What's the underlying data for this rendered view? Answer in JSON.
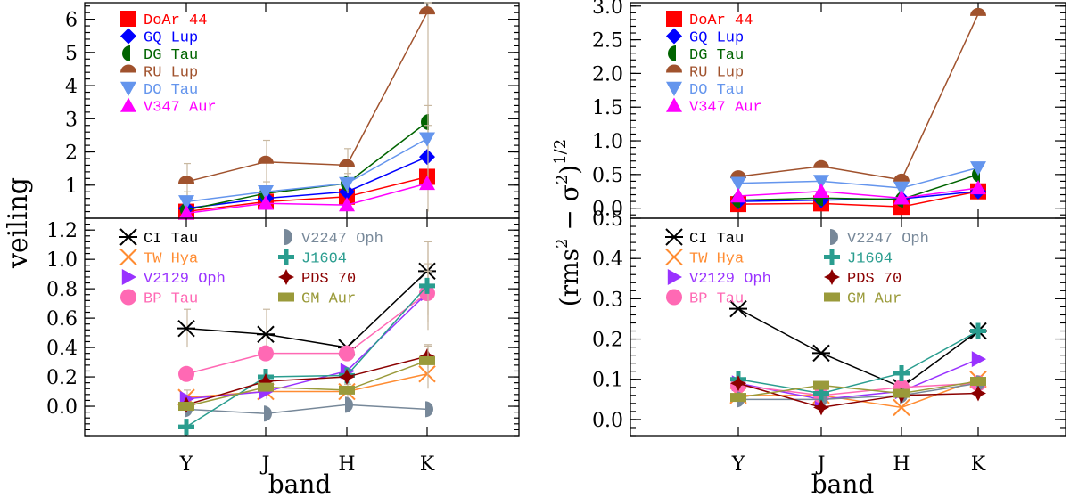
{
  "labels": {
    "left_ylabel": "veiling",
    "right_ylabel_base": "(rms",
    "right_ylabel_sup1": "2",
    "right_ylabel_mid": " − σ",
    "right_ylabel_sup2": "2",
    "right_ylabel_end": ")",
    "right_ylabel_exp": "1/2",
    "xlabel": "band"
  },
  "chart_data": [
    {
      "id": "left_top",
      "type": "line",
      "xlabel": "band",
      "ylabel": "veiling",
      "categories": [
        "Y",
        "J",
        "H",
        "K"
      ],
      "ylim": [
        0,
        6.5
      ],
      "yticks": [
        "1",
        "2",
        "3",
        "4",
        "5",
        "6"
      ],
      "ytick_values": [
        1,
        2,
        3,
        4,
        5,
        6
      ],
      "legend_placement": "top-left",
      "series": [
        {
          "name": "DoAr 44",
          "color": "#ff0000",
          "marker": "square",
          "values": [
            0.2,
            0.5,
            0.65,
            1.25
          ],
          "errors": [
            0.15,
            0.15,
            0.15,
            0.2
          ]
        },
        {
          "name": "GQ Lup",
          "color": "#0000ff",
          "marker": "diamond",
          "values": [
            0.3,
            0.6,
            0.8,
            1.85
          ],
          "errors": [
            0,
            0,
            0,
            0
          ]
        },
        {
          "name": "DG Tau",
          "color": "#006400",
          "marker": "halfcircle-left",
          "values": [
            0.25,
            0.75,
            1.05,
            2.9
          ],
          "errors": [
            0,
            0,
            0,
            0.5
          ]
        },
        {
          "name": "RU Lup",
          "color": "#a0522d",
          "marker": "halfcircle-top",
          "values": [
            1.1,
            1.7,
            1.6,
            6.2
          ],
          "errors": [
            0.55,
            0.65,
            0.5,
            6.0
          ]
        },
        {
          "name": "DO Tau",
          "color": "#6495ed",
          "marker": "triangle-down",
          "values": [
            0.5,
            0.8,
            1.05,
            2.4
          ],
          "errors": [
            0.3,
            0.3,
            0.3,
            0.4
          ]
        },
        {
          "name": "V347 Aur",
          "color": "#ff00ff",
          "marker": "triangle-up",
          "values": [
            0.15,
            0.45,
            0.4,
            1.05
          ],
          "errors": [
            0,
            0,
            0,
            0
          ]
        }
      ]
    },
    {
      "id": "left_bottom",
      "type": "line",
      "xlabel": "band",
      "ylabel": "veiling",
      "categories": [
        "Y",
        "J",
        "H",
        "K"
      ],
      "ylim": [
        -0.2,
        1.28
      ],
      "yticks": [
        "0.0",
        "0.2",
        "0.4",
        "0.6",
        "0.8",
        "1.0",
        "1.2"
      ],
      "ytick_values": [
        0,
        0.2,
        0.4,
        0.6,
        0.8,
        1.0,
        1.2
      ],
      "legend_placement": "top-left",
      "series": [
        {
          "name": "CI Tau",
          "color": "#000000",
          "marker": "asterisk",
          "values": [
            0.53,
            0.49,
            0.4,
            0.92
          ],
          "errors": [
            0.13,
            0.17,
            0,
            0.2
          ]
        },
        {
          "name": "TW Hya",
          "color": "#ff8c32",
          "marker": "x",
          "values": [
            0.06,
            0.1,
            0.1,
            0.22
          ],
          "errors": [
            0.05,
            0.05,
            0.05,
            0.1
          ]
        },
        {
          "name": "V2129 Oph",
          "color": "#9932ff",
          "marker": "triangle-right",
          "values": [
            0.05,
            0.1,
            0.24,
            0.77
          ],
          "errors": [
            0,
            0,
            0,
            0.2
          ]
        },
        {
          "name": "BP Tau",
          "color": "#ff69b4",
          "marker": "circle",
          "values": [
            0.22,
            0.36,
            0.36,
            0.77
          ],
          "errors": [
            0,
            0,
            0,
            0.15
          ]
        },
        {
          "name": "V2247 Oph",
          "color": "#778899",
          "marker": "halfcircle-right",
          "values": [
            -0.02,
            -0.05,
            0.01,
            -0.02
          ],
          "errors": [
            0,
            0,
            0,
            0
          ]
        },
        {
          "name": "J1604",
          "color": "#2a9d8f",
          "marker": "plus",
          "values": [
            -0.14,
            0.2,
            0.21,
            0.82
          ],
          "errors": [
            0,
            0,
            0,
            0.3
          ]
        },
        {
          "name": "PDS 70",
          "color": "#8b0000",
          "marker": "star4",
          "values": [
            0.01,
            0.17,
            0.2,
            0.34
          ],
          "errors": [
            0,
            0,
            0,
            0.08
          ]
        },
        {
          "name": "GM Aur",
          "color": "#9a9a3a",
          "marker": "rect",
          "values": [
            0.0,
            0.13,
            0.11,
            0.31
          ],
          "errors": [
            0,
            0,
            0,
            0.1
          ]
        }
      ]
    },
    {
      "id": "right_top",
      "type": "line",
      "xlabel": "band",
      "ylabel": "(rms^2 − σ^2)^1/2",
      "categories": [
        "Y",
        "J",
        "H",
        "K"
      ],
      "ylim": [
        -0.15,
        3.05
      ],
      "yticks": [
        "0.0",
        "0.5",
        "1.0",
        "1.5",
        "2.0",
        "2.5",
        "3.0"
      ],
      "ytick_values": [
        0,
        0.5,
        1.0,
        1.5,
        2.0,
        2.5,
        3.0
      ],
      "legend_placement": "top-left",
      "series": [
        {
          "name": "DoAr 44",
          "color": "#ff0000",
          "marker": "square",
          "values": [
            0.06,
            0.07,
            0.02,
            0.25
          ],
          "errors": [
            0,
            0,
            0,
            0
          ]
        },
        {
          "name": "GQ Lup",
          "color": "#0000ff",
          "marker": "diamond",
          "values": [
            0.1,
            0.12,
            0.14,
            0.25
          ],
          "errors": [
            0,
            0,
            0,
            0
          ]
        },
        {
          "name": "DG Tau",
          "color": "#006400",
          "marker": "halfcircle-left",
          "values": [
            0.12,
            0.15,
            0.13,
            0.5
          ],
          "errors": [
            0,
            0,
            0,
            0
          ]
        },
        {
          "name": "RU Lup",
          "color": "#a0522d",
          "marker": "halfcircle-top",
          "values": [
            0.47,
            0.62,
            0.42,
            2.88
          ],
          "errors": [
            0,
            0,
            0,
            0
          ]
        },
        {
          "name": "DO Tau",
          "color": "#6495ed",
          "marker": "triangle-down",
          "values": [
            0.37,
            0.4,
            0.3,
            0.6
          ],
          "errors": [
            0,
            0,
            0,
            0
          ]
        },
        {
          "name": "V347 Aur",
          "color": "#ff00ff",
          "marker": "triangle-up",
          "values": [
            0.18,
            0.25,
            0.15,
            0.3
          ],
          "errors": [
            0,
            0,
            0,
            0
          ]
        }
      ]
    },
    {
      "id": "right_bottom",
      "type": "line",
      "xlabel": "band",
      "ylabel": "(rms^2 − σ^2)^1/2",
      "categories": [
        "Y",
        "J",
        "H",
        "K"
      ],
      "ylim": [
        -0.04,
        0.5
      ],
      "yticks": [
        "0.0",
        "0.1",
        "0.2",
        "0.3",
        "0.4",
        "0.5"
      ],
      "ytick_values": [
        0,
        0.1,
        0.2,
        0.3,
        0.4,
        0.5
      ],
      "legend_placement": "top-left",
      "series": [
        {
          "name": "CI Tau",
          "color": "#000000",
          "marker": "asterisk",
          "values": [
            0.275,
            0.165,
            0.08,
            0.22
          ],
          "errors": [
            0,
            0,
            0,
            0
          ]
        },
        {
          "name": "TW Hya",
          "color": "#ff8c32",
          "marker": "x",
          "values": [
            0.06,
            0.06,
            0.03,
            0.1
          ],
          "errors": [
            0,
            0,
            0,
            0
          ]
        },
        {
          "name": "V2129 Oph",
          "color": "#9932ff",
          "marker": "triangle-right",
          "values": [
            0.09,
            0.05,
            0.07,
            0.15
          ],
          "errors": [
            0,
            0,
            0,
            0
          ]
        },
        {
          "name": "BP Tau",
          "color": "#ff69b4",
          "marker": "circle",
          "values": [
            0.085,
            0.06,
            0.08,
            0.09
          ],
          "errors": [
            0,
            0,
            0,
            0
          ]
        },
        {
          "name": "V2247 Oph",
          "color": "#778899",
          "marker": "halfcircle-right",
          "values": [
            0.05,
            0.05,
            0.06,
            0.09
          ],
          "errors": [
            0,
            0,
            0,
            0
          ]
        },
        {
          "name": "J1604",
          "color": "#2a9d8f",
          "marker": "plus",
          "values": [
            0.1,
            0.065,
            0.115,
            0.22
          ],
          "errors": [
            0,
            0,
            0,
            0
          ]
        },
        {
          "name": "PDS 70",
          "color": "#8b0000",
          "marker": "star4",
          "values": [
            0.09,
            0.03,
            0.06,
            0.065
          ],
          "errors": [
            0,
            0,
            0,
            0
          ]
        },
        {
          "name": "GM Aur",
          "color": "#9a9a3a",
          "marker": "rect",
          "values": [
            0.055,
            0.085,
            0.065,
            0.095
          ],
          "errors": [
            0,
            0,
            0,
            0
          ]
        }
      ]
    }
  ]
}
